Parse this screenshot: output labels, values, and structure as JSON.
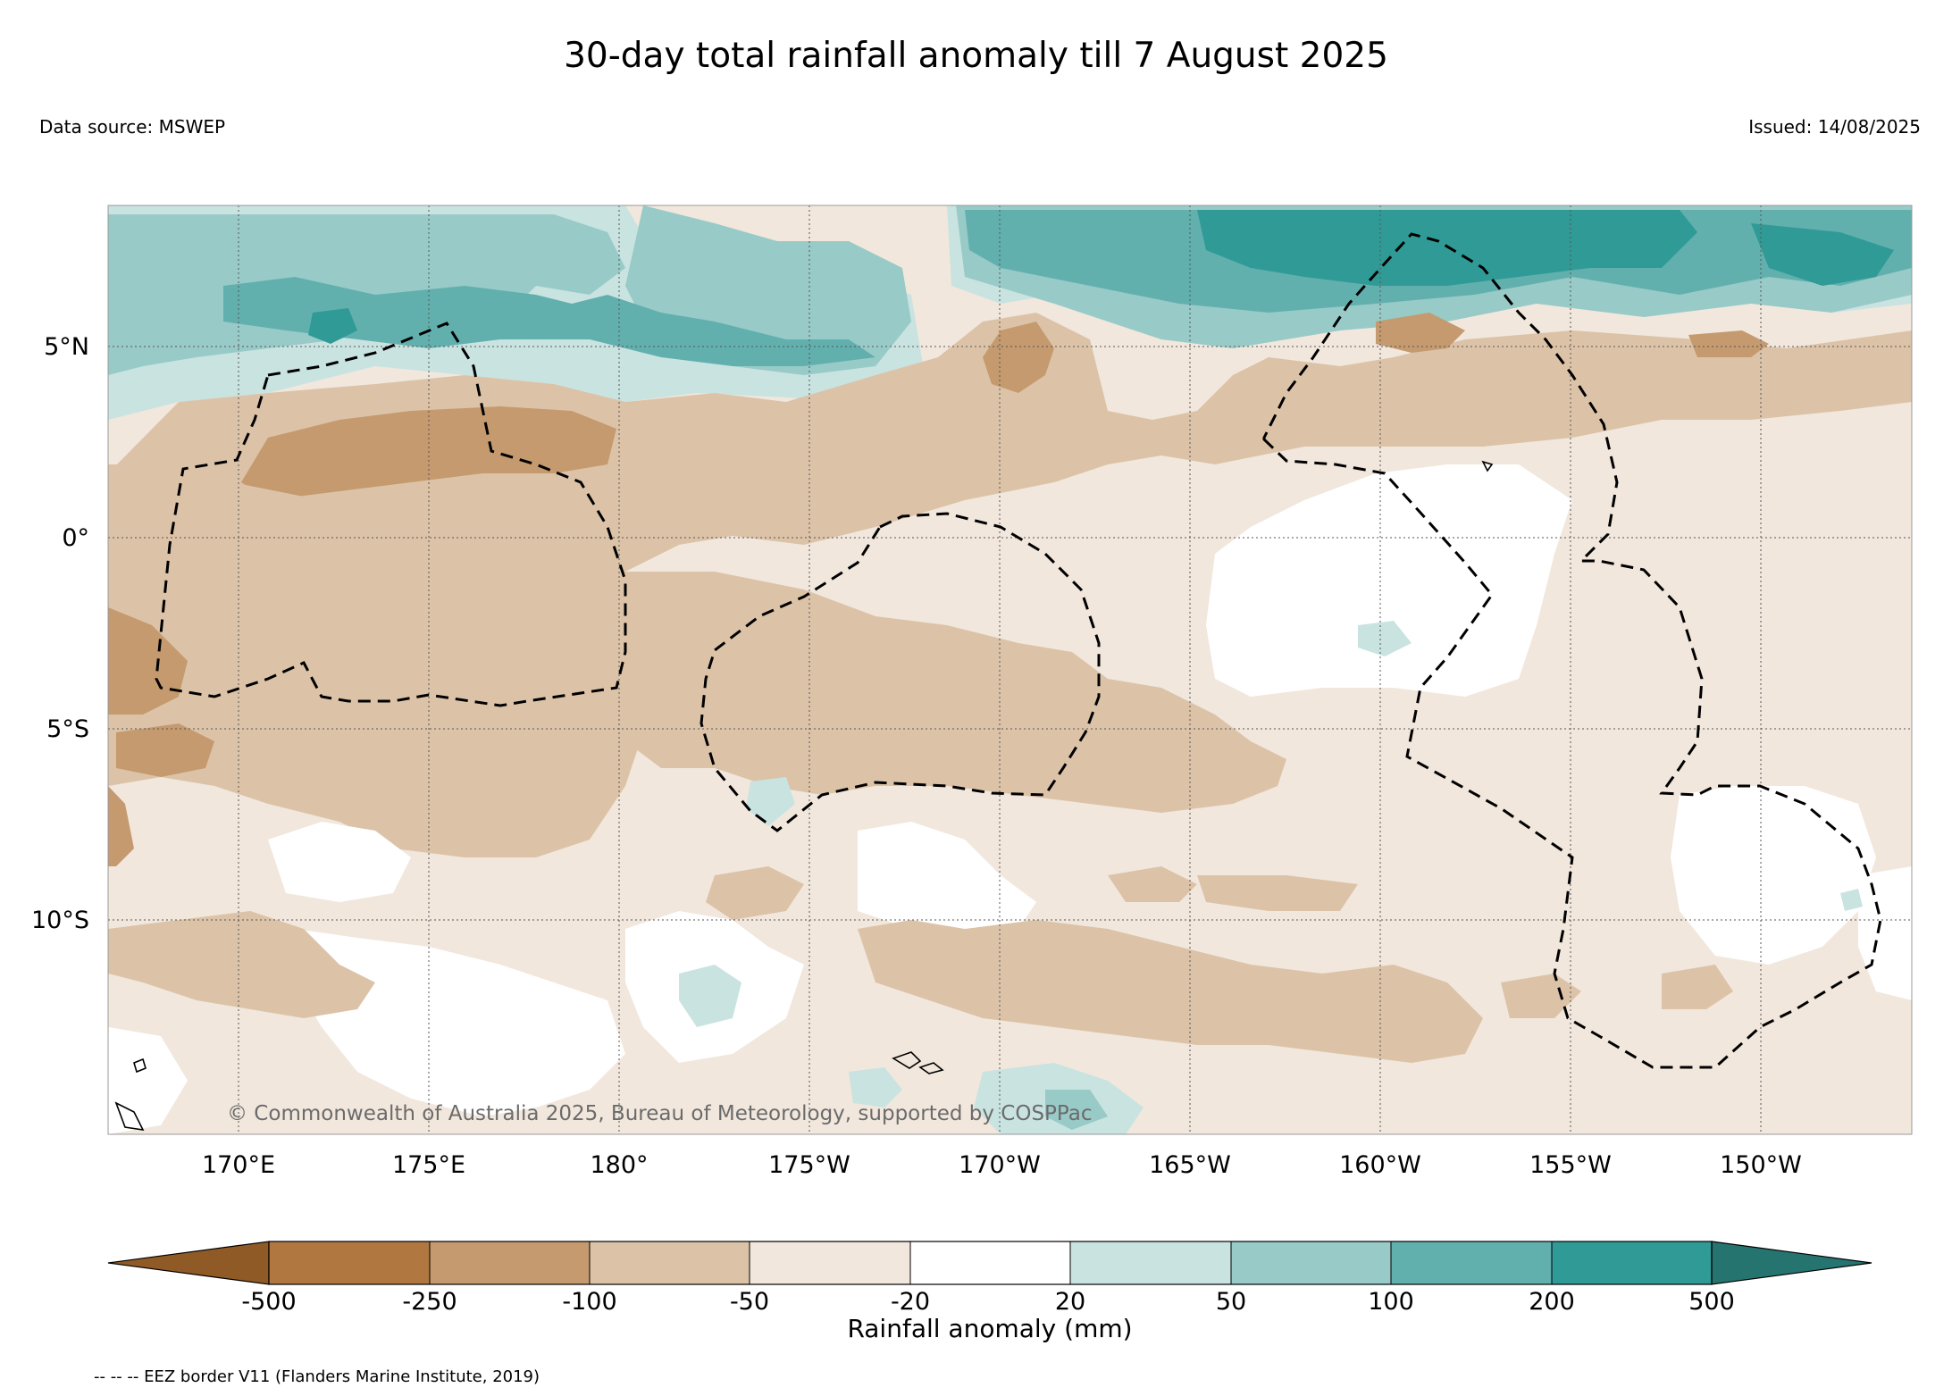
{
  "title": "30-day total rainfall anomaly till 7 August 2025",
  "source": "Data source: MSWEP",
  "issued": "Issued: 14/08/2025",
  "copyright": "© Commonwealth of Australia 2025, Bureau of Meteorology, supported by COSPPac",
  "eez_note": "-- -- -- EEZ border V11 (Flanders Marine Institute, 2019)",
  "colorbar": {
    "label": "Rainfall anomaly (mm)",
    "ticks": [
      "-500",
      "-250",
      "-100",
      "-50",
      "-20",
      "20",
      "50",
      "100",
      "200",
      "500"
    ],
    "colors": {
      "lt_-500": "#8f5a26",
      "-500_-250": "#b07840",
      "-250_-100": "#c49a6e",
      "-100_-50": "#dcc3a8",
      "-50_-20": "#f1e7dd",
      "-20_20": "#ffffff",
      "20_50": "#c9e3e1",
      "50_100": "#98cac8",
      "100_200": "#62b0ae",
      "200_500": "#309a96",
      "gt_500": "#26746f"
    }
  },
  "map": {
    "lon_labels": [
      "170°E",
      "175°E",
      "180°",
      "175°W",
      "170°W",
      "165°W",
      "160°W",
      "155°W",
      "150°W"
    ],
    "lat_labels": [
      "5°N",
      "0°",
      "5°S",
      "10°S"
    ]
  }
}
